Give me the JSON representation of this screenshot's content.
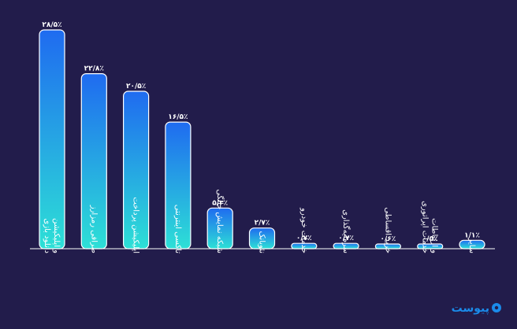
{
  "chart_data": {
    "type": "bar",
    "title": "",
    "xlabel": "",
    "ylabel": "",
    "ylim": [
      0,
      30
    ],
    "grid": false,
    "categories": [
      [
        "دانلود بازی",
        "و اپلیکیشن"
      ],
      [
        "صرافی رمزارز"
      ],
      [
        "اپلیکیشن پرداخت"
      ],
      [
        "تاکسی اینترنتی"
      ],
      [
        "شبکه نمایش خانگی"
      ],
      [
        "نئوبانک"
      ],
      [
        "خدمات خودرو"
      ],
      [
        "سرمایه‌گذاری"
      ],
      [
        "خرید اقساطی"
      ],
      [
        "خدمات اپراتوری",
        "و ارتباطات"
      ],
      [
        "سایر"
      ]
    ],
    "values": [
      28.5,
      22.8,
      20.5,
      16.5,
      5.3,
      2.7,
      0.7,
      0.7,
      0.6,
      0.5,
      1.1
    ],
    "value_labels": [
      "۲۸/۵٪",
      "۲۲/۸٪",
      "۲۰/۵٪",
      "۱۶/۵٪",
      "۵/۳٪",
      "۲/۷٪",
      "۰/۷٪",
      "۰/۷٪",
      "۰/۶٪",
      "۰/۵٪",
      "۱/۱٪"
    ],
    "colors": {
      "background": "#221c4b",
      "bar_top": "#1f6bf0",
      "bar_bottom": "#2de0d6",
      "bar_border": "#ffffff",
      "text": "#ffffff",
      "axis": "#ffffff"
    }
  },
  "brand": {
    "name": "پیوست",
    "color": "#1a8bea"
  }
}
